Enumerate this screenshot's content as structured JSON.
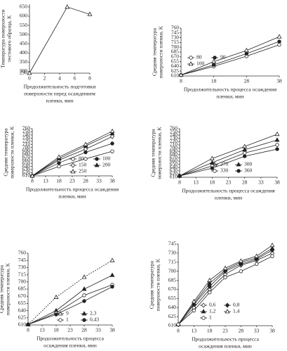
{
  "chart_data": [
    {
      "type": "line",
      "ylabel": [
        "Температура поверхности",
        "тестового образца, K"
      ],
      "xlabel": [
        "Продолжительность подготовки",
        "поверхности перед осаждением",
        "пленки, мин"
      ],
      "xlim": [
        0,
        8
      ],
      "xticks": [
        0,
        2,
        4,
        6,
        8
      ],
      "ylim": [
        290,
        665
      ],
      "yticks": [
        290,
        300,
        350,
        400,
        450,
        500,
        550,
        600,
        650
      ],
      "x": [
        0,
        5,
        8
      ],
      "series": [
        {
          "name": null,
          "color": "#222",
          "marker": "triangle-open",
          "values": [
            290,
            650,
            610
          ]
        }
      ]
    },
    {
      "type": "line",
      "ylabel": [
        "Средняя температура",
        "поверхности пленки, K"
      ],
      "xlabel": [
        "Продолжительность процесса осаждения",
        "пленки, мин"
      ],
      "xlim": [
        8,
        38
      ],
      "xticks": [
        8,
        18,
        28,
        38
      ],
      "ylim": [
        610,
        760
      ],
      "yticks": [
        610,
        625,
        640,
        655,
        670,
        685,
        700,
        715,
        730,
        745,
        760
      ],
      "x": [
        8,
        18,
        28,
        38
      ],
      "series": [
        {
          "name": "80",
          "color": "#222",
          "marker": "circle-open",
          "values": [
            613,
            640,
            672,
            708
          ]
        },
        {
          "name": "90",
          "color": "#222",
          "marker": "circle-filled",
          "values": [
            613,
            645,
            680,
            718
          ]
        },
        {
          "name": "100",
          "color": "#222",
          "marker": "triangle-open",
          "values": [
            613,
            655,
            690,
            733
          ]
        }
      ]
    },
    {
      "type": "line",
      "ylabel": [
        "Средняя температура",
        "поверхности пленки, K"
      ],
      "xlabel": [
        "Продолжительность процесса осаждения",
        "пленки, мин"
      ],
      "xlim": [
        8,
        38
      ],
      "xticks": [
        8,
        13,
        18,
        23,
        28,
        33,
        38
      ],
      "ylim": [
        610,
        760
      ],
      "yticks": [
        610,
        620,
        630,
        640,
        650,
        660,
        670,
        680,
        690,
        700,
        710,
        720,
        730,
        740,
        750,
        760
      ],
      "x": [
        8,
        18,
        28,
        38
      ],
      "series": [
        {
          "name": "80",
          "color": "#222",
          "marker": "circle-open",
          "values": [
            610,
            640,
            664,
            688
          ]
        },
        {
          "name": "100",
          "color": "#222",
          "marker": "circle-filled",
          "values": [
            610,
            651,
            685,
            713
          ]
        },
        {
          "name": "150",
          "color": "#222",
          "marker": "diamond-open",
          "values": [
            610,
            660,
            695,
            735
          ]
        },
        {
          "name": "200",
          "color": "#222",
          "marker": "triangle-filled",
          "values": [
            610,
            665,
            705,
            745
          ]
        },
        {
          "name": "250",
          "color": "#222",
          "marker": "triangle-open",
          "values": [
            610,
            670,
            710,
            752
          ]
        }
      ]
    },
    {
      "type": "line",
      "ylabel": [
        "Средняя температура",
        "поверхности пленки, K"
      ],
      "xlabel": [
        "Продолжительность процесса осаждения",
        "пленки, мин"
      ],
      "xlim": [
        8,
        38
      ],
      "xticks": [
        8,
        13,
        18,
        23,
        28,
        33,
        38
      ],
      "ylim": [
        610,
        760
      ],
      "yticks": [
        610,
        620,
        630,
        640,
        650,
        660,
        670,
        680,
        690,
        700,
        710,
        720,
        730,
        740,
        750,
        760
      ],
      "x": [
        8,
        18,
        28,
        38
      ],
      "series": [
        {
          "name": "270",
          "color": "#222",
          "marker": "triangle-open",
          "values": [
            614,
            668,
            705,
            743
          ]
        },
        {
          "name": "300",
          "color": "#222",
          "marker": "triangle-filled",
          "values": [
            614,
            655,
            695,
            725
          ]
        },
        {
          "name": "330",
          "color": "#222",
          "marker": "circle-open",
          "values": [
            614,
            645,
            685,
            710
          ]
        },
        {
          "name": "360",
          "color": "#222",
          "marker": "circle-filled",
          "values": [
            614,
            638,
            675,
            697
          ]
        }
      ]
    },
    {
      "type": "line",
      "ylabel": [
        "Средняя температура",
        "поверхности пленки, K"
      ],
      "xlabel": [
        "Продолжительность процесса",
        "осаждения пленки, мин"
      ],
      "xlim": [
        8,
        38
      ],
      "xticks": [
        8,
        13,
        18,
        23,
        28,
        33,
        38
      ],
      "ylim": [
        610,
        760
      ],
      "yticks": [
        610,
        625,
        640,
        655,
        670,
        685,
        700,
        715,
        730,
        745,
        760
      ],
      "x": [
        8,
        18,
        28,
        38
      ],
      "series": [
        {
          "name": "9",
          "color": "#222",
          "marker": "triangle-open",
          "dash": true,
          "values": [
            611,
            668,
            710,
            745
          ]
        },
        {
          "name": "2,3",
          "color": "#222",
          "marker": "triangle-filled",
          "values": [
            611,
            640,
            685,
            714
          ]
        },
        {
          "name": "1",
          "color": "#222",
          "marker": "circle-open",
          "values": [
            611,
            635,
            672,
            694
          ]
        },
        {
          "name": "0,43",
          "color": "#222",
          "marker": "circle-filled",
          "values": [
            611,
            632,
            660,
            690
          ]
        }
      ]
    },
    {
      "type": "line",
      "ylabel": [
        "Средняя температура",
        "поверхности пленки, K"
      ],
      "xlabel": [
        "Продолжительность процесса",
        "осаждения пленки, мин"
      ],
      "xlim": [
        8,
        38
      ],
      "xticks": [
        8,
        13,
        18,
        23,
        28,
        33,
        38
      ],
      "ylim": [
        610,
        745
      ],
      "yticks": [
        610,
        625,
        640,
        655,
        670,
        685,
        700,
        715,
        730,
        745
      ],
      "x": [
        8,
        13,
        18,
        23,
        28,
        33,
        38
      ],
      "series": [
        {
          "name": "0,6",
          "color": "#222",
          "marker": "diamond-open",
          "values": [
            612,
            640,
            670,
            695,
            710,
            718,
            730
          ]
        },
        {
          "name": "0,8",
          "color": "#222",
          "marker": "diamond-filled",
          "values": [
            612,
            645,
            675,
            700,
            712,
            720,
            735
          ]
        },
        {
          "name": "1,2",
          "color": "#222",
          "marker": "triangle-filled",
          "values": [
            612,
            647,
            680,
            702,
            715,
            722,
            738
          ]
        },
        {
          "name": "1,4",
          "color": "#222",
          "marker": "triangle-open",
          "values": [
            612,
            650,
            685,
            705,
            717,
            725,
            743
          ]
        },
        {
          "name": "1",
          "color": "#222",
          "marker": "circle-open",
          "values": [
            612,
            635,
            665,
            690,
            700,
            712,
            725
          ]
        }
      ]
    }
  ]
}
